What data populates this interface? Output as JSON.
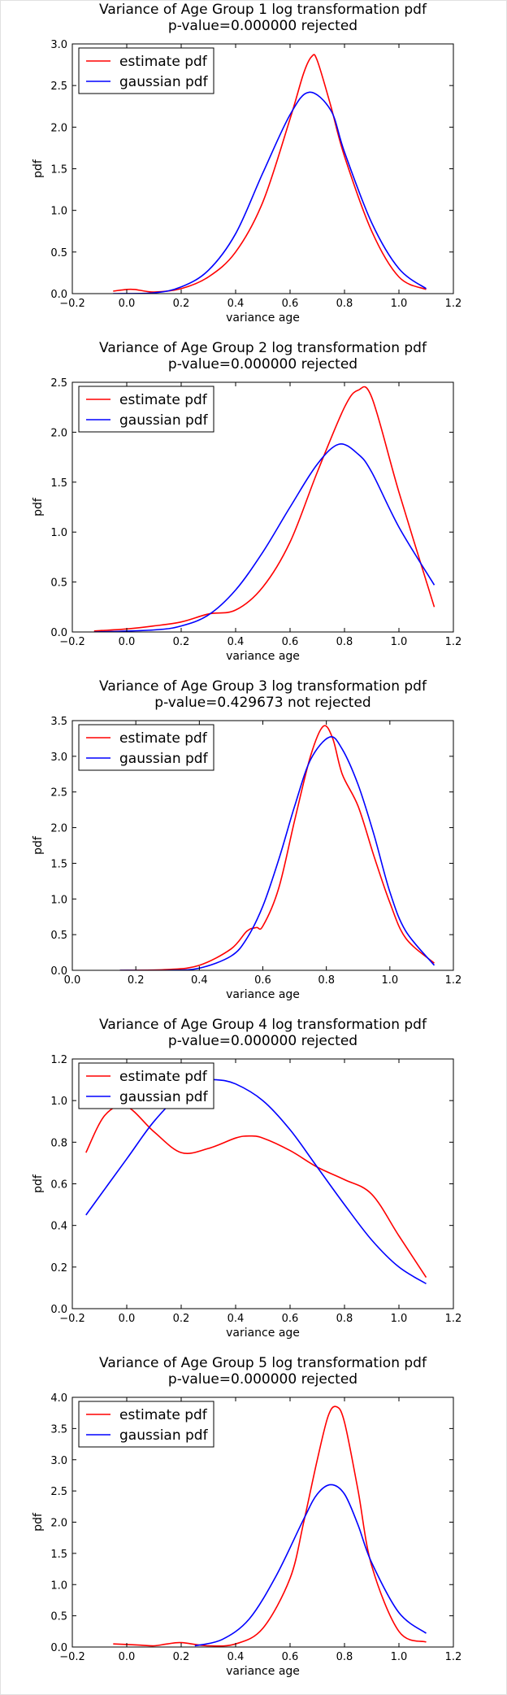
{
  "colors": {
    "estimate": "#ff0000",
    "gaussian": "#0000ff",
    "axis": "#000000"
  },
  "chart_data": [
    {
      "type": "line",
      "title": "Variance of Age Group 1 log transformation pdf",
      "subtitle": "p-value=0.000000  rejected",
      "xlabel": "variance age",
      "ylabel": "pdf",
      "xlim": [
        -0.2,
        1.2
      ],
      "ylim": [
        0,
        3.0
      ],
      "xticks": [
        "−0.2",
        "0.0",
        "0.2",
        "0.4",
        "0.6",
        "0.8",
        "1.0",
        "1.2"
      ],
      "yticks": [
        "0.0",
        "0.5",
        "1.0",
        "1.5",
        "2.0",
        "2.5",
        "3.0"
      ],
      "legend": "top-left",
      "series": [
        {
          "name": "estimate pdf",
          "color": "#ff0000",
          "x": [
            -0.05,
            0.0,
            0.03,
            0.1,
            0.2,
            0.3,
            0.4,
            0.5,
            0.6,
            0.65,
            0.68,
            0.7,
            0.75,
            0.8,
            0.9,
            1.0,
            1.1
          ],
          "y": [
            0.03,
            0.05,
            0.05,
            0.02,
            0.06,
            0.2,
            0.5,
            1.1,
            2.1,
            2.65,
            2.85,
            2.8,
            2.25,
            1.65,
            0.75,
            0.2,
            0.05
          ]
        },
        {
          "name": "gaussian pdf",
          "color": "#0000ff",
          "x": [
            -0.05,
            0.1,
            0.2,
            0.3,
            0.4,
            0.5,
            0.6,
            0.67,
            0.75,
            0.8,
            0.9,
            1.0,
            1.1
          ],
          "y": [
            0.0,
            0.01,
            0.08,
            0.28,
            0.72,
            1.45,
            2.15,
            2.42,
            2.2,
            1.7,
            0.85,
            0.3,
            0.06
          ]
        }
      ]
    },
    {
      "type": "line",
      "title": "Variance of Age Group 2 log transformation pdf",
      "subtitle": "p-value=0.000000  rejected",
      "xlabel": "variance age",
      "ylabel": "pdf",
      "xlim": [
        -0.2,
        1.2
      ],
      "ylim": [
        0,
        2.5
      ],
      "xticks": [
        "−0.2",
        "0.0",
        "0.2",
        "0.4",
        "0.6",
        "0.8",
        "1.0",
        "1.2"
      ],
      "yticks": [
        "0.0",
        "0.5",
        "1.0",
        "1.5",
        "2.0",
        "2.5"
      ],
      "legend": "top-left",
      "series": [
        {
          "name": "estimate pdf",
          "color": "#ff0000",
          "x": [
            -0.12,
            0.0,
            0.1,
            0.2,
            0.3,
            0.4,
            0.5,
            0.6,
            0.7,
            0.8,
            0.85,
            0.9,
            1.0,
            1.13
          ],
          "y": [
            0.01,
            0.03,
            0.06,
            0.1,
            0.18,
            0.22,
            0.45,
            0.9,
            1.6,
            2.25,
            2.42,
            2.35,
            1.4,
            0.25
          ]
        },
        {
          "name": "gaussian pdf",
          "color": "#0000ff",
          "x": [
            -0.12,
            0.1,
            0.2,
            0.3,
            0.4,
            0.5,
            0.6,
            0.7,
            0.78,
            0.85,
            0.9,
            1.0,
            1.13
          ],
          "y": [
            0.0,
            0.02,
            0.06,
            0.17,
            0.42,
            0.8,
            1.25,
            1.68,
            1.88,
            1.78,
            1.6,
            1.05,
            0.47
          ]
        }
      ]
    },
    {
      "type": "line",
      "title": "Variance of Age Group 3 log transformation pdf",
      "subtitle": "p-value=0.429673  not rejected",
      "xlabel": "variance age",
      "ylabel": "pdf",
      "xlim": [
        0.0,
        1.2
      ],
      "ylim": [
        0,
        3.5
      ],
      "xticks": [
        "0.0",
        "0.2",
        "0.4",
        "0.6",
        "0.8",
        "1.0",
        "1.2"
      ],
      "yticks": [
        "0.0",
        "0.5",
        "1.0",
        "1.5",
        "2.0",
        "2.5",
        "3.0",
        "3.5"
      ],
      "legend": "top-left",
      "series": [
        {
          "name": "estimate pdf",
          "color": "#ff0000",
          "x": [
            0.15,
            0.3,
            0.4,
            0.5,
            0.55,
            0.58,
            0.6,
            0.65,
            0.7,
            0.75,
            0.79,
            0.82,
            0.85,
            0.9,
            0.95,
            1.0,
            1.05,
            1.14
          ],
          "y": [
            0.0,
            0.01,
            0.07,
            0.3,
            0.55,
            0.6,
            0.62,
            1.15,
            2.1,
            3.0,
            3.42,
            3.25,
            2.75,
            2.3,
            1.6,
            0.95,
            0.45,
            0.1
          ]
        },
        {
          "name": "gaussian pdf",
          "color": "#0000ff",
          "x": [
            0.15,
            0.3,
            0.4,
            0.5,
            0.55,
            0.6,
            0.65,
            0.7,
            0.75,
            0.81,
            0.85,
            0.9,
            0.95,
            1.0,
            1.05,
            1.14
          ],
          "y": [
            0.0,
            0.0,
            0.03,
            0.2,
            0.45,
            0.9,
            1.55,
            2.3,
            2.95,
            3.27,
            3.1,
            2.6,
            1.9,
            1.1,
            0.55,
            0.07
          ]
        }
      ]
    },
    {
      "type": "line",
      "title": "Variance of Age Group 4 log transformation pdf",
      "subtitle": "p-value=0.000000  rejected",
      "xlabel": "variance age",
      "ylabel": "pdf",
      "xlim": [
        -0.2,
        1.2
      ],
      "ylim": [
        0.0,
        1.2
      ],
      "xticks": [
        "−0.2",
        "0.0",
        "0.2",
        "0.4",
        "0.6",
        "0.8",
        "1.0",
        "1.2"
      ],
      "yticks": [
        "0.0",
        "0.2",
        "0.4",
        "0.6",
        "0.8",
        "1.0",
        "1.2"
      ],
      "legend": "top-left",
      "series": [
        {
          "name": "estimate pdf",
          "color": "#ff0000",
          "x": [
            -0.15,
            -0.08,
            0.0,
            0.1,
            0.2,
            0.3,
            0.4,
            0.45,
            0.5,
            0.6,
            0.7,
            0.8,
            0.9,
            1.0,
            1.1
          ],
          "y": [
            0.75,
            0.93,
            0.97,
            0.85,
            0.75,
            0.77,
            0.82,
            0.83,
            0.82,
            0.76,
            0.68,
            0.62,
            0.55,
            0.35,
            0.15
          ]
        },
        {
          "name": "gaussian pdf",
          "color": "#0000ff",
          "x": [
            -0.15,
            0.0,
            0.1,
            0.2,
            0.3,
            0.33,
            0.4,
            0.5,
            0.6,
            0.7,
            0.8,
            0.9,
            1.0,
            1.1
          ],
          "y": [
            0.45,
            0.72,
            0.9,
            1.03,
            1.09,
            1.1,
            1.08,
            1.0,
            0.86,
            0.68,
            0.5,
            0.33,
            0.2,
            0.12
          ]
        }
      ]
    },
    {
      "type": "line",
      "title": "Variance of Age Group 5 log transformation pdf",
      "subtitle": "p-value=0.000000  rejected",
      "xlabel": "variance age",
      "ylabel": "pdf",
      "xlim": [
        -0.2,
        1.2
      ],
      "ylim": [
        0,
        4.0
      ],
      "xticks": [
        "−0.2",
        "0.0",
        "0.2",
        "0.4",
        "0.6",
        "0.8",
        "1.0",
        "1.2"
      ],
      "yticks": [
        "0.0",
        "0.5",
        "1.0",
        "1.5",
        "2.0",
        "2.5",
        "3.0",
        "3.5",
        "4.0"
      ],
      "legend": "top-left",
      "series": [
        {
          "name": "estimate pdf",
          "color": "#ff0000",
          "x": [
            -0.05,
            0.05,
            0.1,
            0.15,
            0.2,
            0.3,
            0.4,
            0.5,
            0.6,
            0.65,
            0.7,
            0.74,
            0.77,
            0.8,
            0.85,
            0.9,
            1.0,
            1.1
          ],
          "y": [
            0.05,
            0.03,
            0.02,
            0.05,
            0.07,
            0.02,
            0.05,
            0.3,
            1.1,
            2.0,
            3.0,
            3.7,
            3.85,
            3.6,
            2.5,
            1.3,
            0.25,
            0.08
          ]
        },
        {
          "name": "gaussian pdf",
          "color": "#0000ff",
          "x": [
            0.25,
            0.35,
            0.45,
            0.55,
            0.65,
            0.7,
            0.75,
            0.8,
            0.85,
            0.9,
            1.0,
            1.1
          ],
          "y": [
            0.02,
            0.12,
            0.45,
            1.15,
            2.05,
            2.45,
            2.6,
            2.45,
            1.95,
            1.35,
            0.55,
            0.22
          ]
        }
      ]
    }
  ]
}
